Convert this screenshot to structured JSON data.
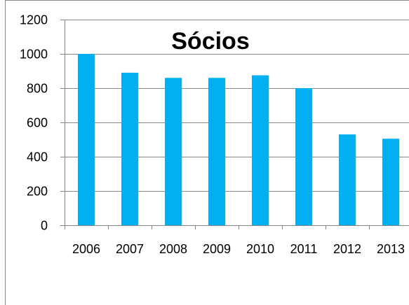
{
  "chart_data": {
    "type": "bar",
    "title": "Sócios",
    "xlabel": "",
    "ylabel": "",
    "categories": [
      "2006",
      "2007",
      "2008",
      "2009",
      "2010",
      "2011",
      "2012",
      "2013"
    ],
    "series": [
      {
        "values": [
          1000,
          890,
          860,
          860,
          875,
          800,
          530,
          505
        ]
      }
    ],
    "ylim": [
      0,
      1200
    ],
    "yticks": [
      0,
      200,
      400,
      600,
      800,
      1000,
      1200
    ],
    "grid": true,
    "legend": "none",
    "colors": {
      "bar": "#00B0F0",
      "grid": "#868686",
      "axis": "#868686",
      "frame": "#868686",
      "text": "#000000"
    }
  }
}
